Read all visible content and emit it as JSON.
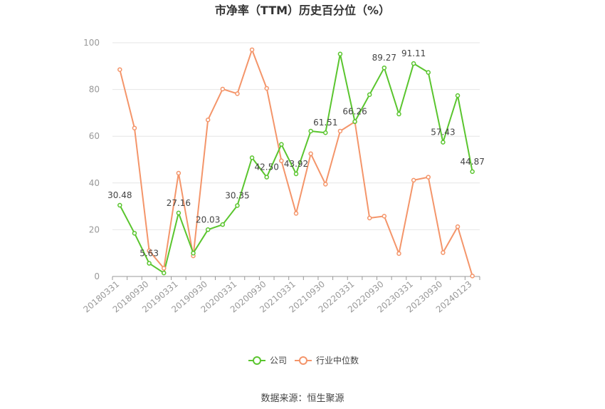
{
  "chart_data": {
    "type": "line",
    "title": "市净率（TTM）历史百分位（%）",
    "source": "数据来源：恒生聚源",
    "ylim": [
      0,
      100
    ],
    "yticks": [
      0,
      20,
      40,
      60,
      80,
      100
    ],
    "xtick_labels": [
      "20180331",
      "20180930",
      "20190331",
      "20190930",
      "20200331",
      "20200930",
      "20210331",
      "20210930",
      "20220331",
      "20220930",
      "20230331",
      "20230930",
      "20240123"
    ],
    "x": [
      "20180331",
      "20180630",
      "20180930",
      "20181231",
      "20190331",
      "20190630",
      "20190930",
      "20191231",
      "20200331",
      "20200630",
      "20200930",
      "20201231",
      "20210331",
      "20210630",
      "20210930",
      "20211231",
      "20220331",
      "20220630",
      "20220930",
      "20221231",
      "20230331",
      "20230630",
      "20230930",
      "20231231",
      "20240123"
    ],
    "series": [
      {
        "name": "公司",
        "color": "#5ac52e",
        "values": [
          30.48,
          18.5,
          5.63,
          1.5,
          27.16,
          10.0,
          20.03,
          22.2,
          30.35,
          50.8,
          42.5,
          56.5,
          43.92,
          62.2,
          61.51,
          95.2,
          66.26,
          77.8,
          89.27,
          69.5,
          91.11,
          87.3,
          57.43,
          77.4,
          44.87
        ],
        "labels": {
          "0": "30.48",
          "2": "5.63",
          "4": "27.16",
          "6": "20.03",
          "8": "30.35",
          "10": "42.50",
          "12": "43.92",
          "14": "61.51",
          "16": "66.26",
          "18": "89.27",
          "20": "91.11",
          "22": "57.43",
          "24": "44.87"
        }
      },
      {
        "name": "行业中位数",
        "color": "#f4956a",
        "values": [
          88.5,
          63.5,
          11.0,
          3.5,
          44.2,
          8.8,
          67.0,
          80.2,
          78.2,
          97.0,
          80.5,
          49.5,
          27.0,
          52.5,
          39.5,
          62.2,
          66.2,
          25.0,
          25.8,
          9.8,
          41.2,
          42.5,
          10.2,
          21.3,
          0.2
        ]
      }
    ],
    "legend_position": "bottom-center",
    "grid": "horizontal"
  }
}
